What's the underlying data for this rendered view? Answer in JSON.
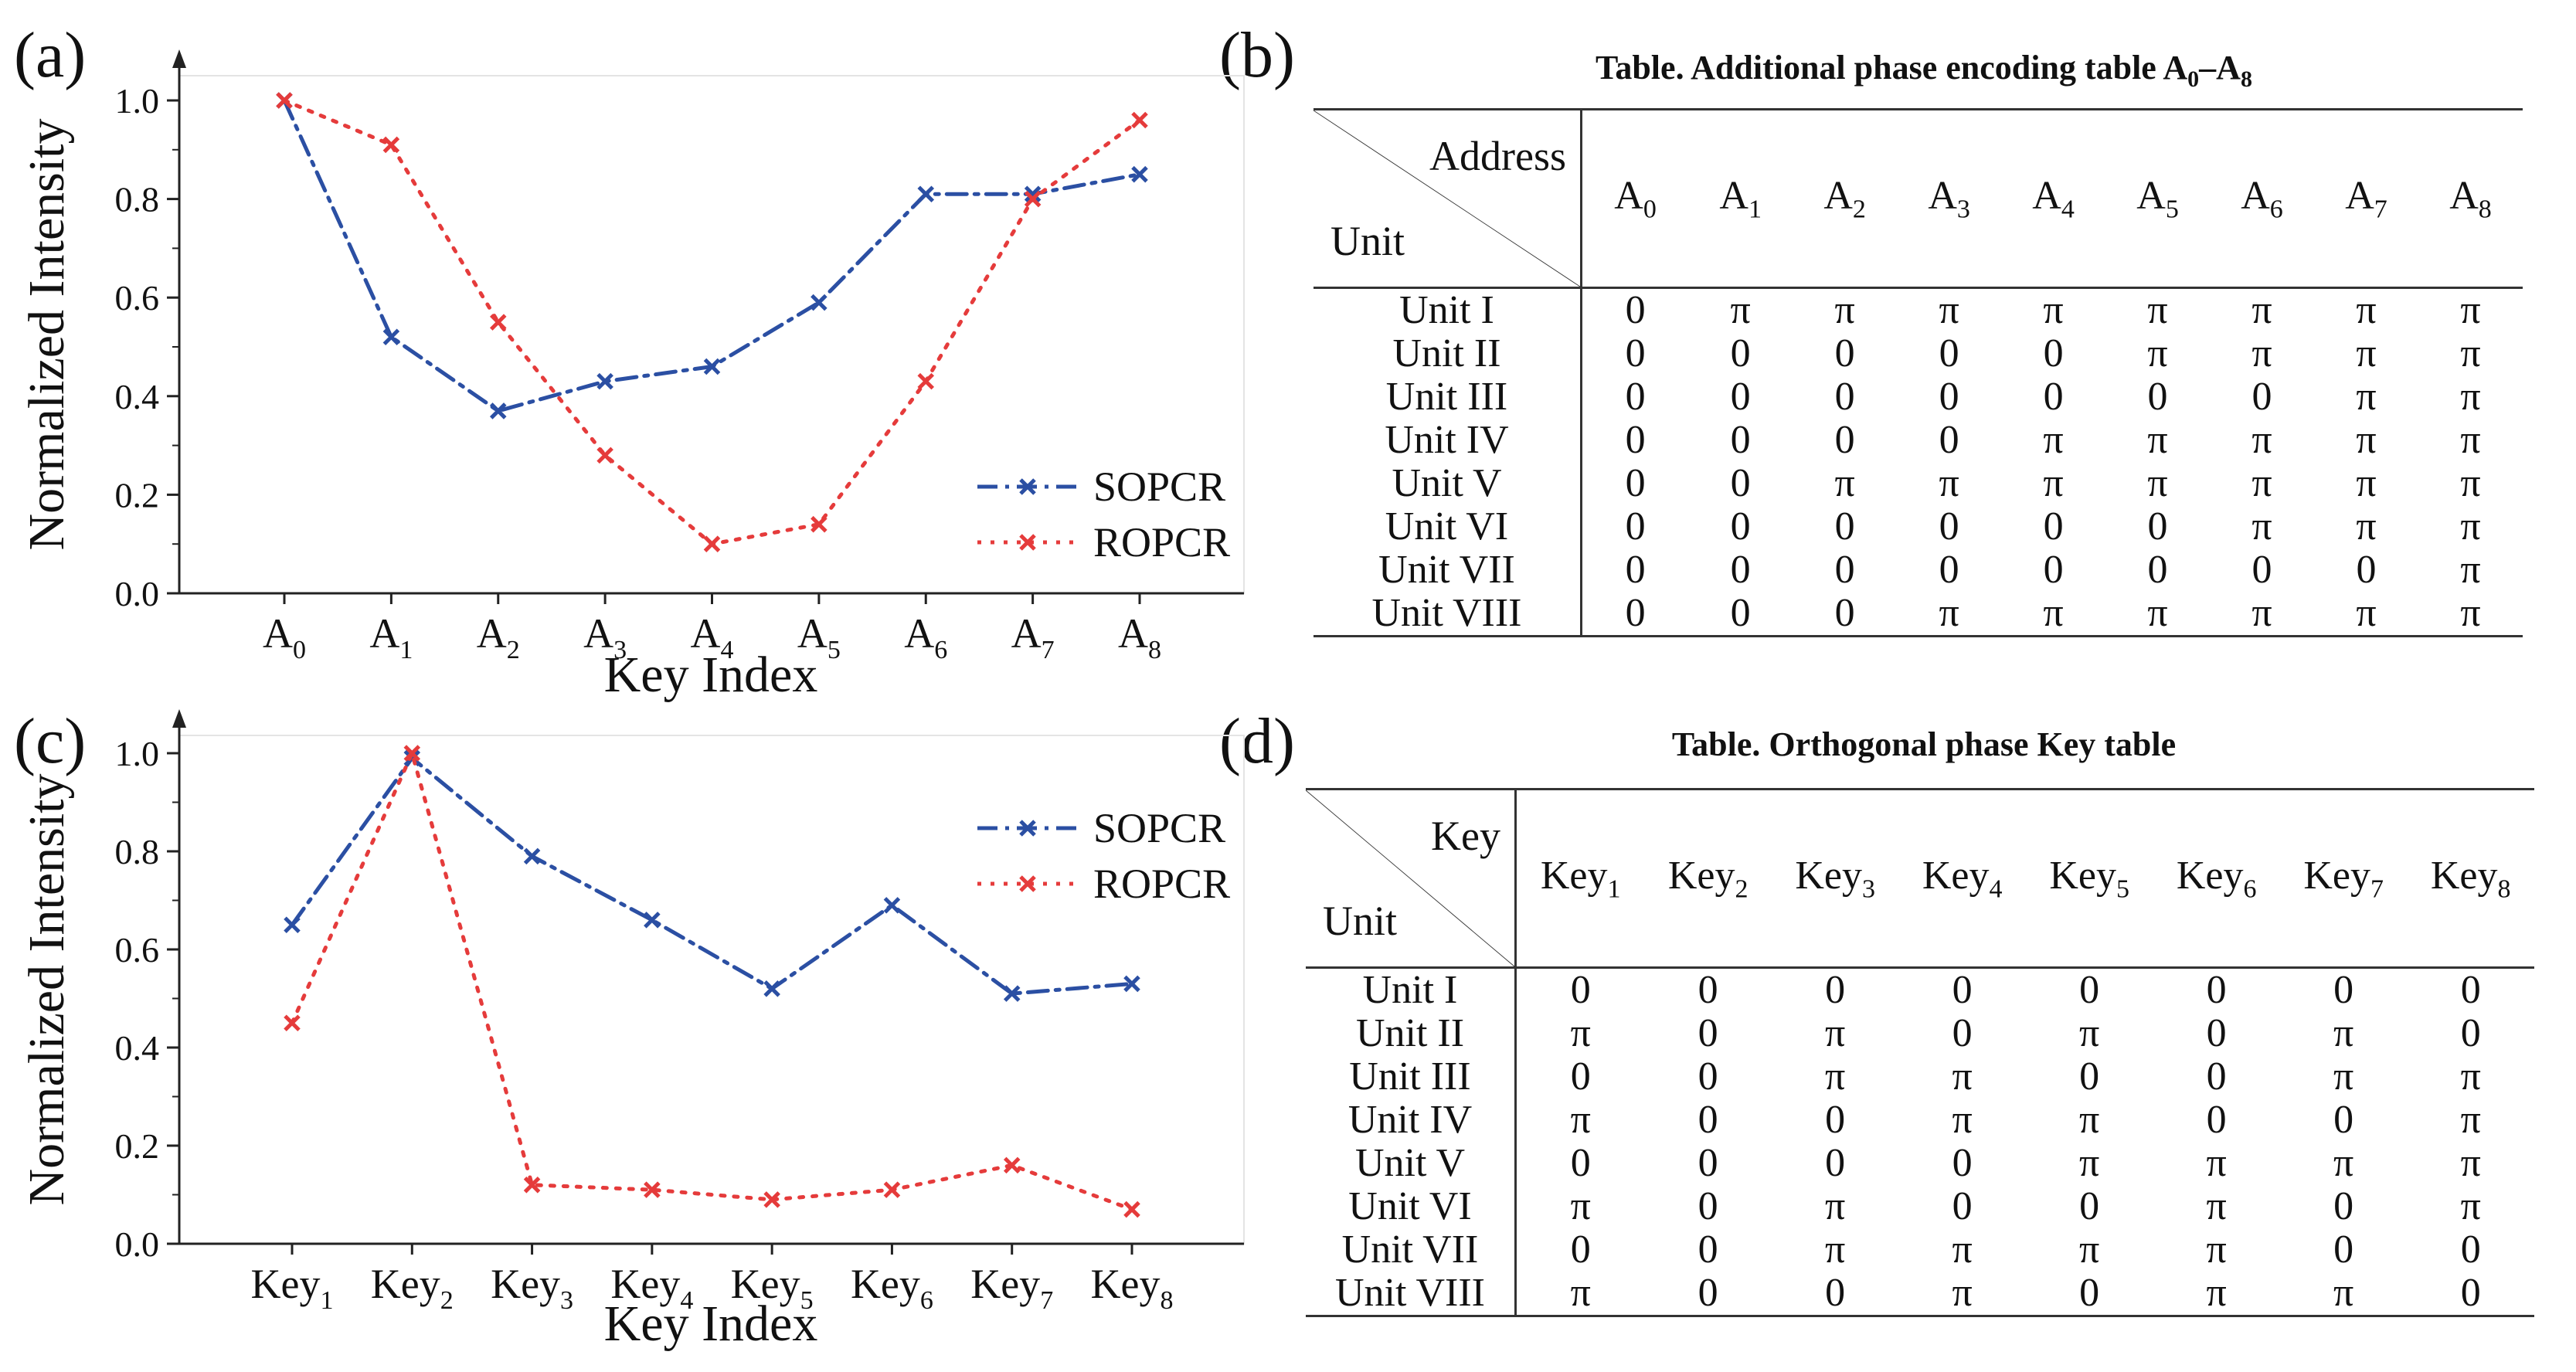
{
  "panels": {
    "a": "(a)",
    "b": "(b)",
    "c": "(c)",
    "d": "(d)"
  },
  "colors": {
    "sopcr": "#2b4fa3",
    "ropcr": "#e53b3b"
  },
  "chart_data": [
    {
      "type": "line",
      "panel": "a",
      "categories": [
        "A0",
        "A1",
        "A2",
        "A3",
        "A4",
        "A5",
        "A6",
        "A7",
        "A8"
      ],
      "category_labels": [
        [
          "A",
          "0"
        ],
        [
          "A",
          "1"
        ],
        [
          "A",
          "2"
        ],
        [
          "A",
          "3"
        ],
        [
          "A",
          "4"
        ],
        [
          "A",
          "5"
        ],
        [
          "A",
          "6"
        ],
        [
          "A",
          "7"
        ],
        [
          "A",
          "8"
        ]
      ],
      "series": [
        {
          "name": "SOPCR",
          "values": [
            1.0,
            0.52,
            0.37,
            0.43,
            0.46,
            0.59,
            0.81,
            0.81,
            0.85
          ]
        },
        {
          "name": "ROPCR",
          "values": [
            1.0,
            0.91,
            0.55,
            0.28,
            0.1,
            0.14,
            0.43,
            0.8,
            0.96
          ]
        }
      ],
      "xlabel": "Key Index",
      "ylabel": "Normalized Intensity",
      "yticks": [
        "0.0",
        "0.2",
        "0.4",
        "0.6",
        "0.8",
        "1.0"
      ],
      "ylim": [
        0,
        1.0
      ],
      "legend": "bottom-right"
    },
    {
      "type": "line",
      "panel": "c",
      "categories": [
        "Key1",
        "Key2",
        "Key3",
        "Key4",
        "Key5",
        "Key6",
        "Key7",
        "Key8"
      ],
      "category_labels": [
        [
          "Key",
          "1"
        ],
        [
          "Key",
          "2"
        ],
        [
          "Key",
          "3"
        ],
        [
          "Key",
          "4"
        ],
        [
          "Key",
          "5"
        ],
        [
          "Key",
          "6"
        ],
        [
          "Key",
          "7"
        ],
        [
          "Key",
          "8"
        ]
      ],
      "series": [
        {
          "name": "SOPCR",
          "values": [
            0.65,
            0.99,
            0.79,
            0.66,
            0.52,
            0.69,
            0.51,
            0.53
          ]
        },
        {
          "name": "ROPCR",
          "values": [
            0.45,
            1.0,
            0.12,
            0.11,
            0.09,
            0.11,
            0.16,
            0.07
          ]
        }
      ],
      "xlabel": "Key Index",
      "ylabel": "Normalized Intensity",
      "yticks": [
        "0.0",
        "0.2",
        "0.4",
        "0.6",
        "0.8",
        "1.0"
      ],
      "ylim": [
        0,
        1.0
      ],
      "legend": "top-right"
    }
  ],
  "table_b": {
    "title_main": "Table. Additional phase encoding table A",
    "title_sub1": "0",
    "title_dash": "–A",
    "title_sub2": "8",
    "corner_top": "Address",
    "corner_bottom": "Unit",
    "headers": [
      [
        "A",
        "0"
      ],
      [
        "A",
        "1"
      ],
      [
        "A",
        "2"
      ],
      [
        "A",
        "3"
      ],
      [
        "A",
        "4"
      ],
      [
        "A",
        "5"
      ],
      [
        "A",
        "6"
      ],
      [
        "A",
        "7"
      ],
      [
        "A",
        "8"
      ]
    ],
    "rows": [
      {
        "unit": "Unit I",
        "values": [
          "0",
          "π",
          "π",
          "π",
          "π",
          "π",
          "π",
          "π",
          "π"
        ]
      },
      {
        "unit": "Unit II",
        "values": [
          "0",
          "0",
          "0",
          "0",
          "0",
          "π",
          "π",
          "π",
          "π"
        ]
      },
      {
        "unit": "Unit III",
        "values": [
          "0",
          "0",
          "0",
          "0",
          "0",
          "0",
          "0",
          "π",
          "π"
        ]
      },
      {
        "unit": "Unit IV",
        "values": [
          "0",
          "0",
          "0",
          "0",
          "π",
          "π",
          "π",
          "π",
          "π"
        ]
      },
      {
        "unit": "Unit V",
        "values": [
          "0",
          "0",
          "π",
          "π",
          "π",
          "π",
          "π",
          "π",
          "π"
        ]
      },
      {
        "unit": "Unit VI",
        "values": [
          "0",
          "0",
          "0",
          "0",
          "0",
          "0",
          "π",
          "π",
          "π"
        ]
      },
      {
        "unit": "Unit VII",
        "values": [
          "0",
          "0",
          "0",
          "0",
          "0",
          "0",
          "0",
          "0",
          "π"
        ]
      },
      {
        "unit": "Unit VIII",
        "values": [
          "0",
          "0",
          "0",
          "π",
          "π",
          "π",
          "π",
          "π",
          "π"
        ]
      }
    ]
  },
  "table_d": {
    "title": "Table. Orthogonal phase Key table",
    "corner_top": "Key",
    "corner_bottom": "Unit",
    "headers": [
      [
        "Key",
        "1"
      ],
      [
        "Key",
        "2"
      ],
      [
        "Key",
        "3"
      ],
      [
        "Key",
        "4"
      ],
      [
        "Key",
        "5"
      ],
      [
        "Key",
        "6"
      ],
      [
        "Key",
        "7"
      ],
      [
        "Key",
        "8"
      ]
    ],
    "rows": [
      {
        "unit": "Unit I",
        "values": [
          "0",
          "0",
          "0",
          "0",
          "0",
          "0",
          "0",
          "0"
        ]
      },
      {
        "unit": "Unit II",
        "values": [
          "π",
          "0",
          "π",
          "0",
          "π",
          "0",
          "π",
          "0"
        ]
      },
      {
        "unit": "Unit III",
        "values": [
          "0",
          "0",
          "π",
          "π",
          "0",
          "0",
          "π",
          "π"
        ]
      },
      {
        "unit": "Unit IV",
        "values": [
          "π",
          "0",
          "0",
          "π",
          "π",
          "0",
          "0",
          "π"
        ]
      },
      {
        "unit": "Unit V",
        "values": [
          "0",
          "0",
          "0",
          "0",
          "π",
          "π",
          "π",
          "π"
        ]
      },
      {
        "unit": "Unit VI",
        "values": [
          "π",
          "0",
          "π",
          "0",
          "0",
          "π",
          "0",
          "π"
        ]
      },
      {
        "unit": "Unit VII",
        "values": [
          "0",
          "0",
          "π",
          "π",
          "π",
          "π",
          "0",
          "0"
        ]
      },
      {
        "unit": "Unit VIII",
        "values": [
          "π",
          "0",
          "0",
          "π",
          "0",
          "π",
          "π",
          "0"
        ]
      }
    ]
  }
}
